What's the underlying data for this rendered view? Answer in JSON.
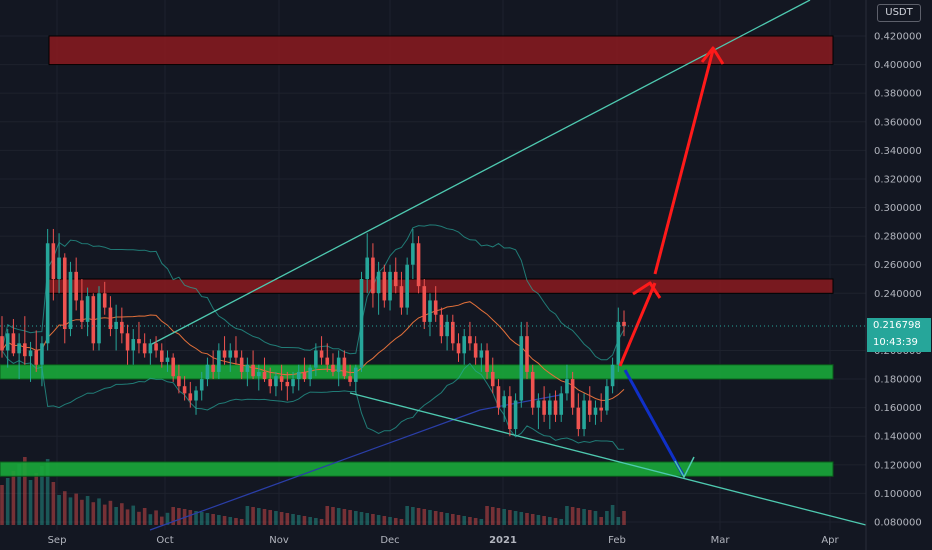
{
  "chart_data": {
    "type": "candlestick",
    "quote_currency": "USDT",
    "current_price": "0.216798",
    "countdown": "10:43:39",
    "x_ticks": [
      "Sep",
      "Oct",
      "Nov",
      "Dec",
      "2021",
      "Feb",
      "Mar",
      "Apr"
    ],
    "y_ticks": [
      "0.420000",
      "0.400000",
      "0.380000",
      "0.360000",
      "0.340000",
      "0.320000",
      "0.300000",
      "0.280000",
      "0.260000",
      "0.240000",
      "0.200000",
      "0.180000",
      "0.160000",
      "0.140000",
      "0.120000",
      "0.100000",
      "0.080000"
    ],
    "ylim": [
      0.08,
      0.43
    ],
    "xlim_days": [
      -7,
      215
    ],
    "candles_ohlc": [
      [
        0.21,
        0.224,
        0.195,
        0.2
      ],
      [
        0.2,
        0.215,
        0.188,
        0.212
      ],
      [
        0.212,
        0.222,
        0.196,
        0.198
      ],
      [
        0.198,
        0.212,
        0.18,
        0.205
      ],
      [
        0.205,
        0.224,
        0.19,
        0.196
      ],
      [
        0.196,
        0.206,
        0.178,
        0.2
      ],
      [
        0.2,
        0.214,
        0.185,
        0.19
      ],
      [
        0.19,
        0.21,
        0.175,
        0.205
      ],
      [
        0.205,
        0.285,
        0.2,
        0.275
      ],
      [
        0.275,
        0.285,
        0.235,
        0.25
      ],
      [
        0.25,
        0.282,
        0.24,
        0.265
      ],
      [
        0.265,
        0.268,
        0.205,
        0.215
      ],
      [
        0.215,
        0.262,
        0.21,
        0.255
      ],
      [
        0.255,
        0.265,
        0.228,
        0.235
      ],
      [
        0.235,
        0.25,
        0.215,
        0.22
      ],
      [
        0.22,
        0.244,
        0.21,
        0.238
      ],
      [
        0.238,
        0.24,
        0.2,
        0.205
      ],
      [
        0.205,
        0.245,
        0.2,
        0.24
      ],
      [
        0.24,
        0.248,
        0.225,
        0.23
      ],
      [
        0.23,
        0.238,
        0.21,
        0.215
      ],
      [
        0.215,
        0.232,
        0.2,
        0.22
      ],
      [
        0.22,
        0.23,
        0.205,
        0.212
      ],
      [
        0.212,
        0.218,
        0.19,
        0.2
      ],
      [
        0.2,
        0.215,
        0.19,
        0.208
      ],
      [
        0.208,
        0.22,
        0.198,
        0.205
      ],
      [
        0.205,
        0.212,
        0.195,
        0.198
      ],
      [
        0.198,
        0.208,
        0.19,
        0.205
      ],
      [
        0.205,
        0.21,
        0.195,
        0.2
      ],
      [
        0.2,
        0.205,
        0.188,
        0.192
      ],
      [
        0.192,
        0.2,
        0.185,
        0.195
      ],
      [
        0.195,
        0.198,
        0.178,
        0.182
      ],
      [
        0.182,
        0.19,
        0.17,
        0.175
      ],
      [
        0.175,
        0.182,
        0.165,
        0.17
      ],
      [
        0.17,
        0.178,
        0.16,
        0.165
      ],
      [
        0.165,
        0.175,
        0.155,
        0.172
      ],
      [
        0.172,
        0.185,
        0.165,
        0.18
      ],
      [
        0.18,
        0.195,
        0.175,
        0.19
      ],
      [
        0.19,
        0.2,
        0.18,
        0.185
      ],
      [
        0.185,
        0.205,
        0.18,
        0.2
      ],
      [
        0.2,
        0.21,
        0.19,
        0.195
      ],
      [
        0.195,
        0.205,
        0.185,
        0.2
      ],
      [
        0.2,
        0.21,
        0.19,
        0.195
      ],
      [
        0.195,
        0.2,
        0.18,
        0.185
      ],
      [
        0.185,
        0.195,
        0.175,
        0.19
      ],
      [
        0.19,
        0.2,
        0.18,
        0.182
      ],
      [
        0.182,
        0.19,
        0.172,
        0.185
      ],
      [
        0.185,
        0.195,
        0.178,
        0.18
      ],
      [
        0.18,
        0.188,
        0.17,
        0.175
      ],
      [
        0.175,
        0.185,
        0.168,
        0.182
      ],
      [
        0.182,
        0.19,
        0.172,
        0.178
      ],
      [
        0.178,
        0.185,
        0.165,
        0.175
      ],
      [
        0.175,
        0.185,
        0.17,
        0.18
      ],
      [
        0.18,
        0.19,
        0.172,
        0.185
      ],
      [
        0.185,
        0.195,
        0.178,
        0.18
      ],
      [
        0.18,
        0.19,
        0.175,
        0.188
      ],
      [
        0.188,
        0.205,
        0.182,
        0.2
      ],
      [
        0.2,
        0.21,
        0.19,
        0.195
      ],
      [
        0.195,
        0.205,
        0.185,
        0.19
      ],
      [
        0.19,
        0.198,
        0.182,
        0.185
      ],
      [
        0.185,
        0.2,
        0.175,
        0.195
      ],
      [
        0.195,
        0.2,
        0.18,
        0.182
      ],
      [
        0.182,
        0.19,
        0.175,
        0.178
      ],
      [
        0.178,
        0.19,
        0.17,
        0.188
      ],
      [
        0.188,
        0.255,
        0.185,
        0.25
      ],
      [
        0.25,
        0.282,
        0.24,
        0.265
      ],
      [
        0.265,
        0.275,
        0.23,
        0.24
      ],
      [
        0.24,
        0.262,
        0.225,
        0.255
      ],
      [
        0.255,
        0.26,
        0.23,
        0.235
      ],
      [
        0.235,
        0.26,
        0.228,
        0.255
      ],
      [
        0.255,
        0.265,
        0.24,
        0.245
      ],
      [
        0.245,
        0.255,
        0.225,
        0.23
      ],
      [
        0.23,
        0.265,
        0.225,
        0.26
      ],
      [
        0.26,
        0.285,
        0.25,
        0.275
      ],
      [
        0.275,
        0.28,
        0.24,
        0.245
      ],
      [
        0.245,
        0.25,
        0.215,
        0.22
      ],
      [
        0.22,
        0.24,
        0.21,
        0.235
      ],
      [
        0.235,
        0.245,
        0.22,
        0.225
      ],
      [
        0.225,
        0.23,
        0.205,
        0.21
      ],
      [
        0.21,
        0.225,
        0.2,
        0.22
      ],
      [
        0.22,
        0.225,
        0.2,
        0.205
      ],
      [
        0.205,
        0.212,
        0.192,
        0.198
      ],
      [
        0.198,
        0.215,
        0.19,
        0.21
      ],
      [
        0.21,
        0.22,
        0.2,
        0.205
      ],
      [
        0.205,
        0.21,
        0.19,
        0.195
      ],
      [
        0.195,
        0.205,
        0.185,
        0.2
      ],
      [
        0.2,
        0.205,
        0.18,
        0.185
      ],
      [
        0.185,
        0.195,
        0.17,
        0.175
      ],
      [
        0.175,
        0.18,
        0.155,
        0.16
      ],
      [
        0.16,
        0.172,
        0.15,
        0.168
      ],
      [
        0.168,
        0.175,
        0.14,
        0.145
      ],
      [
        0.145,
        0.17,
        0.14,
        0.165
      ],
      [
        0.165,
        0.22,
        0.16,
        0.21
      ],
      [
        0.21,
        0.22,
        0.18,
        0.185
      ],
      [
        0.185,
        0.19,
        0.155,
        0.16
      ],
      [
        0.16,
        0.17,
        0.145,
        0.165
      ],
      [
        0.165,
        0.175,
        0.15,
        0.155
      ],
      [
        0.155,
        0.17,
        0.145,
        0.165
      ],
      [
        0.165,
        0.172,
        0.15,
        0.155
      ],
      [
        0.155,
        0.175,
        0.15,
        0.17
      ],
      [
        0.17,
        0.19,
        0.165,
        0.18
      ],
      [
        0.18,
        0.185,
        0.155,
        0.16
      ],
      [
        0.16,
        0.17,
        0.14,
        0.145
      ],
      [
        0.145,
        0.17,
        0.14,
        0.165
      ],
      [
        0.165,
        0.175,
        0.15,
        0.155
      ],
      [
        0.155,
        0.165,
        0.148,
        0.16
      ],
      [
        0.16,
        0.17,
        0.15,
        0.158
      ],
      [
        0.158,
        0.18,
        0.155,
        0.175
      ],
      [
        0.175,
        0.195,
        0.17,
        0.19
      ],
      [
        0.19,
        0.23,
        0.185,
        0.22
      ],
      [
        0.22,
        0.228,
        0.21,
        0.217
      ]
    ],
    "resistance_zones": [
      [
        0.4,
        0.42
      ],
      [
        0.24,
        0.25
      ]
    ],
    "support_zones": [
      [
        0.18,
        0.19
      ],
      [
        0.112,
        0.122
      ]
    ],
    "colors": {
      "up": "#26a69a",
      "down": "#ef5350",
      "resistance_zone": "#8b1a1f",
      "support_zone": "#1aa83a",
      "trendline": "#4ec9b0",
      "forecast_up": "#ff1a1a",
      "forecast_down": "#1030c8",
      "background": "#131722"
    }
  }
}
